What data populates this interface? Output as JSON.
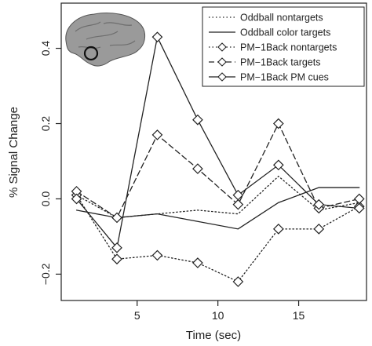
{
  "chart_data": {
    "type": "line",
    "xlabel": "Time (sec)",
    "ylabel": "% Signal Change",
    "xlim": [
      0.3,
      19.2
    ],
    "ylim": [
      -0.27,
      0.52
    ],
    "xticks": [
      5,
      10,
      15
    ],
    "yticks": [
      -0.2,
      0.0,
      0.2,
      0.4
    ],
    "ytick_labels": [
      "−0.2",
      "0.0",
      "0.2",
      "0.4"
    ],
    "grid": false,
    "legend_position": "top-right",
    "x": [
      1.25,
      3.75,
      6.25,
      8.75,
      11.25,
      13.75,
      16.25,
      18.75
    ],
    "series": [
      {
        "name": "Oddball nontargets",
        "linestyle": "dotted",
        "marker": "none",
        "values": [
          0.01,
          -0.05,
          -0.04,
          -0.03,
          -0.04,
          0.06,
          -0.03,
          -0.01
        ]
      },
      {
        "name": "Oddball color targets",
        "linestyle": "solid",
        "marker": "none",
        "values": [
          -0.03,
          -0.05,
          -0.04,
          -0.06,
          -0.08,
          -0.01,
          0.03,
          0.03
        ]
      },
      {
        "name": "PM−1Back nontargets",
        "linestyle": "dotted",
        "marker": "diamond",
        "values": [
          0.01,
          -0.16,
          -0.15,
          -0.17,
          -0.22,
          -0.08,
          -0.08,
          -0.02
        ]
      },
      {
        "name": "PM−1Back targets",
        "linestyle": "dashed",
        "marker": "diamond",
        "values": [
          0.02,
          -0.05,
          0.17,
          0.08,
          -0.015,
          0.2,
          -0.025,
          0.0
        ]
      },
      {
        "name": "PM−1Back PM cues",
        "linestyle": "solid",
        "marker": "diamond",
        "values": [
          0.0,
          -0.13,
          0.43,
          0.21,
          0.01,
          0.09,
          -0.015,
          -0.025
        ]
      }
    ],
    "inset": {
      "type": "brain-icon",
      "highlight": "circle-on-left-temporal-region"
    }
  }
}
